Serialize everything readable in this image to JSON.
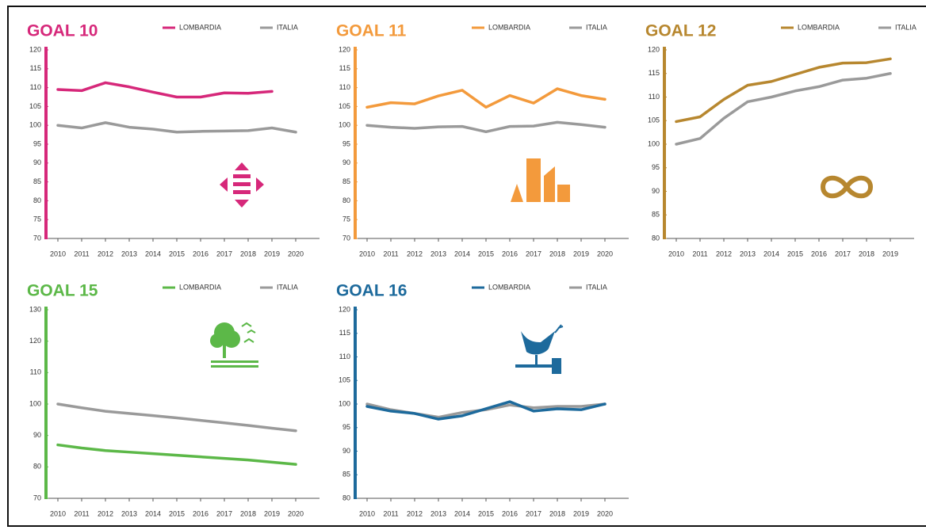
{
  "chart_data": [
    {
      "type": "line",
      "title": "GOAL 10",
      "categories": [
        "2010",
        "2011",
        "2012",
        "2013",
        "2014",
        "2015",
        "2016",
        "2017",
        "2018",
        "2019",
        "2020"
      ],
      "series": [
        {
          "name": "LOMBARDIA",
          "color": "#d6287a",
          "values": [
            109.5,
            109.2,
            111.3,
            110.2,
            108.8,
            107.5,
            107.5,
            108.6,
            108.5,
            109,
            null
          ]
        },
        {
          "name": "ITALIA",
          "color": "#9a9a9a",
          "values": [
            100,
            99.3,
            100.7,
            99.5,
            99,
            98.2,
            98.4,
            98.5,
            98.6,
            99.3,
            98.2
          ]
        }
      ],
      "ylim": [
        70,
        120
      ],
      "yticks": [
        70,
        75,
        80,
        85,
        90,
        95,
        100,
        105,
        110,
        115,
        120
      ]
    },
    {
      "type": "line",
      "title": "GOAL 11",
      "categories": [
        "2010",
        "2011",
        "2012",
        "2013",
        "2014",
        "2015",
        "2016",
        "2017",
        "2018",
        "2019",
        "2020"
      ],
      "series": [
        {
          "name": "LOMBARDIA",
          "color": "#f39a3c",
          "values": [
            104.8,
            106,
            105.7,
            107.8,
            109.3,
            104.8,
            107.9,
            105.9,
            109.7,
            107.9,
            106.9
          ]
        },
        {
          "name": "ITALIA",
          "color": "#9a9a9a",
          "values": [
            100,
            99.5,
            99.2,
            99.6,
            99.7,
            98.3,
            99.7,
            99.8,
            100.8,
            100.2,
            99.5
          ]
        }
      ],
      "ylim": [
        70,
        120
      ],
      "yticks": [
        70,
        75,
        80,
        85,
        90,
        95,
        100,
        105,
        110,
        115,
        120
      ]
    },
    {
      "type": "line",
      "title": "GOAL 12",
      "categories": [
        "2010",
        "2011",
        "2012",
        "2013",
        "2014",
        "2015",
        "2016",
        "2017",
        "2018",
        "2019"
      ],
      "series": [
        {
          "name": "LOMBARDIA",
          "color": "#b7872f",
          "values": [
            104.8,
            105.8,
            109.5,
            112.5,
            113.3,
            114.8,
            116.3,
            117.2,
            117.3,
            118.1
          ]
        },
        {
          "name": "ITALIA",
          "color": "#9a9a9a",
          "values": [
            100,
            101.2,
            105.5,
            109,
            110,
            111.3,
            112.2,
            113.6,
            114,
            115
          ]
        }
      ],
      "ylim": [
        80,
        120
      ],
      "yticks": [
        80,
        85,
        90,
        95,
        100,
        105,
        110,
        115,
        120
      ]
    },
    {
      "type": "line",
      "title": "GOAL 15",
      "categories": [
        "2010",
        "2011",
        "2012",
        "2013",
        "2014",
        "2015",
        "2016",
        "2017",
        "2018",
        "2019",
        "2020"
      ],
      "series": [
        {
          "name": "LOMBARDIA",
          "color": "#5cb848",
          "values": [
            87,
            86,
            85.2,
            84.7,
            84.2,
            83.7,
            83.2,
            82.7,
            82.2,
            81.5,
            80.8
          ]
        },
        {
          "name": "ITALIA",
          "color": "#9a9a9a",
          "values": [
            100,
            98.8,
            97.7,
            97,
            96.3,
            95.6,
            94.8,
            94,
            93.2,
            92.3,
            91.5
          ]
        }
      ],
      "ylim": [
        70,
        130
      ],
      "yticks": [
        70,
        80,
        90,
        100,
        110,
        120,
        130
      ]
    },
    {
      "type": "line",
      "title": "GOAL 16",
      "categories": [
        "2010",
        "2011",
        "2012",
        "2013",
        "2014",
        "2015",
        "2016",
        "2017",
        "2018",
        "2019",
        "2020"
      ],
      "series": [
        {
          "name": "LOMBARDIA",
          "color": "#1d6a9c",
          "values": [
            99.5,
            98.5,
            98,
            96.8,
            97.5,
            99,
            100.5,
            98.5,
            99,
            98.8,
            100
          ]
        },
        {
          "name": "ITALIA",
          "color": "#9a9a9a",
          "values": [
            100,
            98.8,
            98,
            97.2,
            98.2,
            98.8,
            99.8,
            99.2,
            99.5,
            99.5,
            100
          ]
        }
      ],
      "ylim": [
        80,
        120
      ],
      "yticks": [
        80,
        85,
        90,
        95,
        100,
        105,
        110,
        115,
        120
      ]
    }
  ]
}
